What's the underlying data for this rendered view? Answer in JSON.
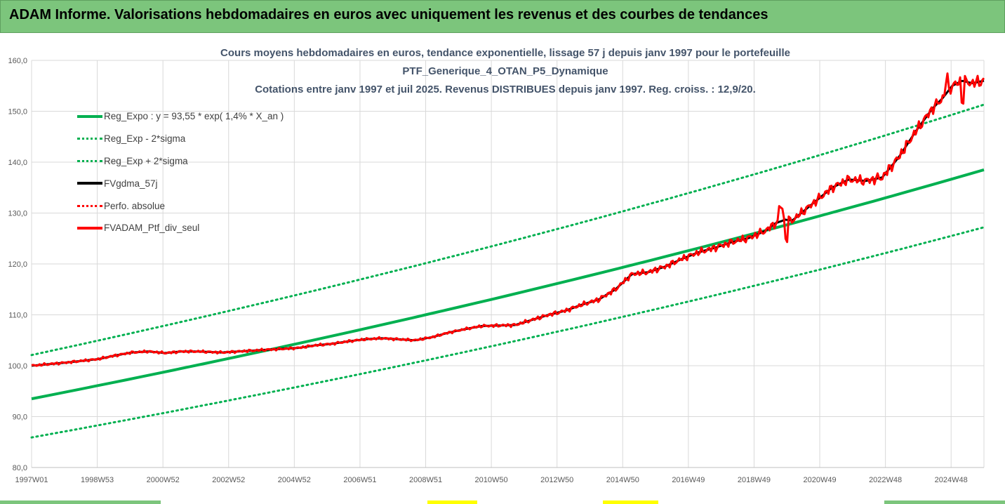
{
  "banner": {
    "title": "ADAM Informe. Valorisations hebdomadaires en euros avec uniquement les revenus et des courbes de tendances"
  },
  "colors": {
    "banner_bg": "#7cc57c",
    "trend": "#00b050",
    "smooth": "#000000",
    "perf": "#ff0000",
    "title_text": "#44546a",
    "strip_yellow": "#ffff00",
    "strip_green": "#7cc57c"
  },
  "chart_data": {
    "type": "line",
    "title": [
      "Cours moyens hebdomadaires  en euros, tendance exponentielle, lissage 57 j depuis janv 1997 pour le portefeuille",
      "PTF_Generique_4_OTAN_P5_Dynamique",
      "Cotations  entre janv 1997 et juil 2025. Revenus DISTRIBUES depuis janv 1997. Reg. croiss. : 12,9/20."
    ],
    "x_range": [
      "1997W01",
      "2025W30"
    ],
    "ylim": [
      80,
      160
    ],
    "y_ticks": [
      "80,0",
      "90,0",
      "100,0",
      "110,0",
      "120,0",
      "130,0",
      "140,0",
      "150,0",
      "160,0"
    ],
    "x_ticks": [
      "1997W01",
      "1998W53",
      "2000W52",
      "2002W52",
      "2004W52",
      "2006W51",
      "2008W51",
      "2010W50",
      "2012W50",
      "2014W50",
      "2016W49",
      "2018W49",
      "2020W49",
      "2022W48",
      "2024W48"
    ],
    "grid": true,
    "legend_position": "top-left",
    "trend": {
      "formula": "y = 93,55 * exp( 1,4% *  X_an )",
      "a": 93.55,
      "rate": 0.014,
      "start": 93.5,
      "end": 138.5,
      "lower_start": 85.9,
      "lower_end": 127.2,
      "upper_start": 102.1,
      "upper_end": 151.3
    },
    "series": [
      {
        "name": "Reg_Expo : y = 93,55 * exp( 1,4% *  X_an )",
        "style": "solid-thick",
        "color": "#00b050"
      },
      {
        "name": "Reg_Exp - 2*sigma",
        "style": "dotted",
        "color": "#00b050"
      },
      {
        "name": "Reg_Exp + 2*sigma",
        "style": "dotted",
        "color": "#00b050"
      },
      {
        "name": "FVgdma_57j",
        "style": "solid",
        "color": "#000000"
      },
      {
        "name": "Perfo. absolue",
        "style": "dotted",
        "color": "#ff0000"
      },
      {
        "name": "FVADAM_Ptf_div_seul",
        "style": "solid-thick",
        "color": "#ff0000"
      }
    ],
    "portfolio_points": {
      "x": [
        1997.0,
        1998.0,
        1999.0,
        1999.5,
        2000.0,
        2000.5,
        2001.0,
        2001.5,
        2002.0,
        2002.7,
        2003.2,
        2003.7,
        2004.2,
        2005.0,
        2005.5,
        2006.0,
        2006.5,
        2007.0,
        2007.5,
        2008.0,
        2008.5,
        2009.0,
        2009.5,
        2010.0,
        2010.5,
        2011.0,
        2011.5,
        2012.0,
        2012.5,
        2013.0,
        2013.5,
        2014.0,
        2014.5,
        2015.0,
        2015.5,
        2016.0,
        2016.5,
        2017.0,
        2017.5,
        2018.0,
        2018.5,
        2019.0,
        2019.3,
        2019.6,
        2019.8,
        2020.0,
        2020.5,
        2021.0,
        2021.5,
        2022.0,
        2022.5,
        2023.0,
        2023.5,
        2024.0,
        2024.3,
        2024.6,
        2024.9,
        2025.2,
        2025.55
      ],
      "y": [
        100.0,
        100.6,
        101.3,
        102.0,
        102.6,
        102.8,
        102.5,
        102.8,
        102.8,
        102.6,
        102.8,
        103.0,
        103.2,
        103.5,
        104.0,
        104.3,
        104.8,
        105.2,
        105.4,
        105.2,
        105.0,
        105.6,
        106.5,
        107.2,
        107.8,
        107.9,
        108.0,
        109.0,
        110.0,
        110.8,
        112.0,
        113.0,
        115.0,
        118.0,
        118.4,
        119.5,
        121.0,
        122.3,
        123.2,
        124.3,
        125.1,
        126.5,
        128.0,
        128.7,
        128.5,
        129.6,
        132.3,
        135.0,
        136.6,
        136.3,
        137.0,
        141.0,
        146.0,
        150.5,
        152.5,
        155.0,
        156.0,
        155.5,
        156.0
      ]
    }
  },
  "strip": {
    "segments": [
      {
        "start": 0.0,
        "end": 0.16,
        "color": "#7cc57c"
      },
      {
        "start": 0.425,
        "end": 0.475,
        "color": "#ffff00"
      },
      {
        "start": 0.6,
        "end": 0.655,
        "color": "#ffff00"
      },
      {
        "start": 0.88,
        "end": 1.0,
        "color": "#7cc57c"
      }
    ]
  }
}
